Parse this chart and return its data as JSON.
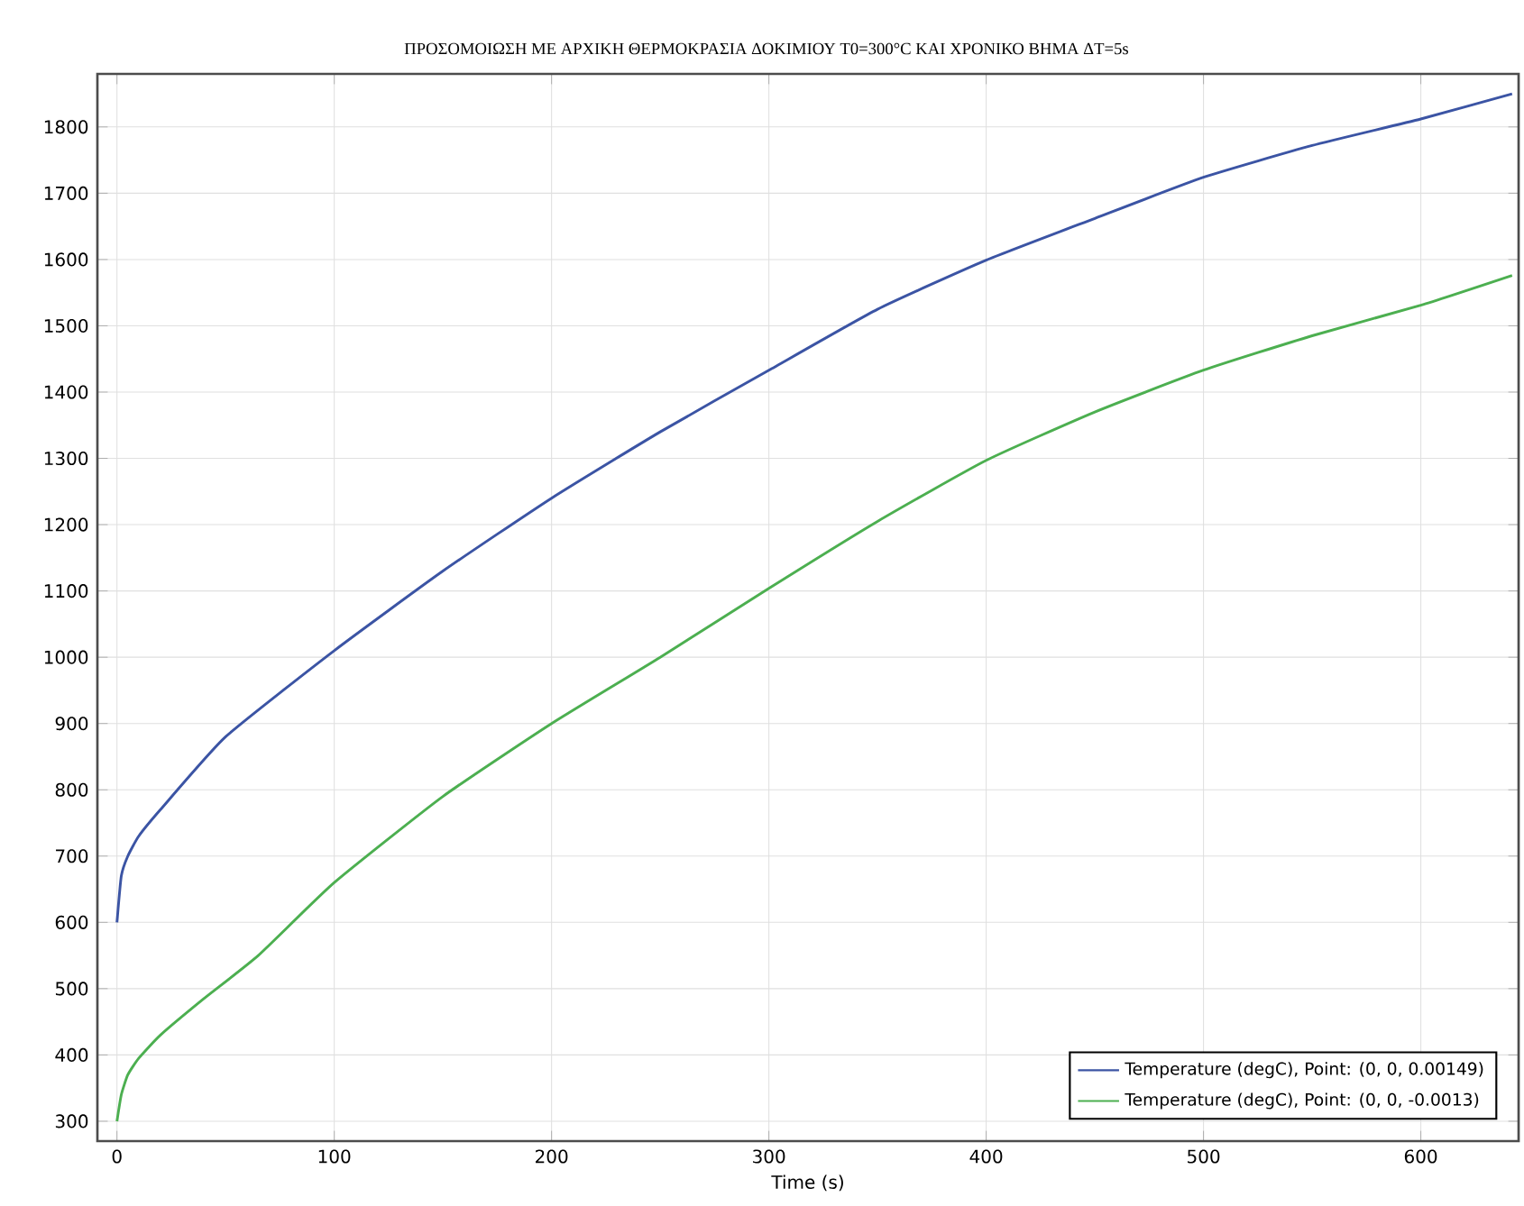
{
  "chart_data": {
    "type": "line",
    "title": "ΠΡΟΣΟΜΟΙΩΣΗ ΜΕ ΑΡΧΙΚΗ ΘΕΡΜΟΚΡΑΣΙΑ ΔΟΚΙΜΙΟΥ T0=300°C ΚΑΙ ΧΡΟΝΙΚΟ ΒΗΜΑ ΔT=5s",
    "xlabel": "Time (s)",
    "xlim": [
      -9,
      645
    ],
    "ylim": [
      270,
      1880
    ],
    "xticks": [
      0,
      100,
      200,
      300,
      400,
      500,
      600
    ],
    "yticks": [
      300,
      400,
      500,
      600,
      700,
      800,
      900,
      1000,
      1100,
      1200,
      1300,
      1400,
      1500,
      1600,
      1700,
      1800
    ],
    "grid": true,
    "legend": "bottom right",
    "marker": "none",
    "line_style": "solid",
    "series": [
      {
        "name": "Temperature (degC), Point: (0, 0, 0.00149)",
        "color": "#3b54a4",
        "x": [
          0,
          2,
          5,
          10,
          20,
          50,
          100,
          150,
          200,
          250,
          300,
          350,
          400,
          450,
          500,
          550,
          600,
          642
        ],
        "values": [
          600,
          670,
          700,
          730,
          770,
          880,
          1010,
          1130,
          1240,
          1340,
          1433,
          1525,
          1599,
          1662,
          1724,
          1772,
          1812,
          1850
        ]
      },
      {
        "name": "Temperature (degC), Point: (0, 0, -0.0013)",
        "color": "#4caf50",
        "x": [
          0,
          2,
          5,
          10,
          20,
          40,
          65,
          100,
          150,
          200,
          250,
          300,
          350,
          400,
          450,
          500,
          550,
          600,
          642
        ],
        "values": [
          300,
          340,
          370,
          395,
          430,
          485,
          550,
          660,
          790,
          900,
          1000,
          1104,
          1205,
          1297,
          1370,
          1433,
          1485,
          1531,
          1576
        ]
      }
    ]
  }
}
